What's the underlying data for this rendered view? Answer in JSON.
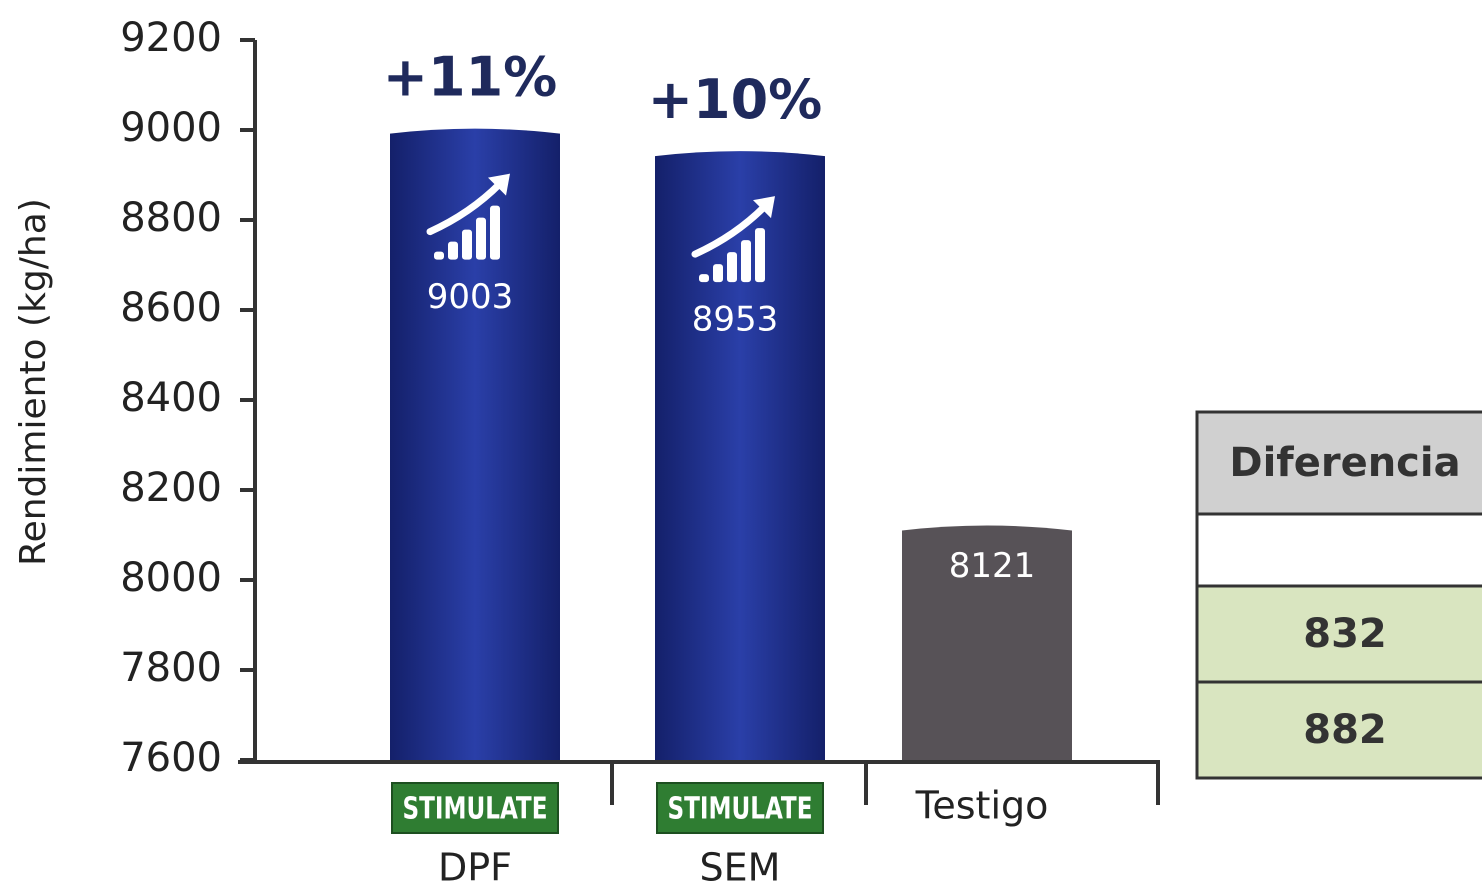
{
  "chart_data": {
    "type": "bar",
    "ylabel": "Rendimiento (kg/ha)",
    "categories": [
      "DPF",
      "SEM",
      "Testigo"
    ],
    "brands": [
      "STIMULATE",
      "STIMULATE",
      null
    ],
    "values": [
      9003,
      8953,
      8121
    ],
    "annotations": [
      "+11%",
      "+10%",
      null
    ],
    "colors": [
      "#1e2f8c",
      "#1e2f8c",
      "#575257"
    ],
    "ylim": [
      7600,
      9200
    ],
    "yticks": [
      7600,
      7800,
      8000,
      8200,
      8400,
      8600,
      8800,
      9000,
      9200
    ],
    "grid": false
  },
  "table": {
    "header": "Diferencia",
    "rows": [
      832,
      882
    ]
  }
}
